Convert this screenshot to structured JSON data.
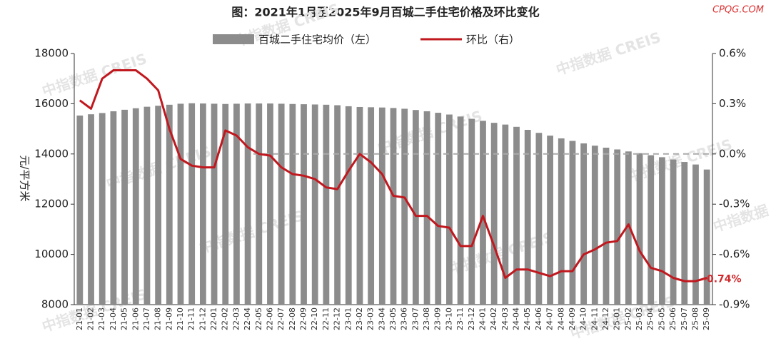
{
  "chart_data": {
    "type": "bar-line",
    "title": "图：2021年1月至2025年9月百城二手住宅价格及环比变化",
    "source_mark": "CPQG.COM",
    "watermark": "中指数据 CREIS",
    "y_label": "元/平方米",
    "categories": [
      "21-01",
      "21-02",
      "21-03",
      "21-04",
      "21-05",
      "21-06",
      "21-07",
      "21-08",
      "21-09",
      "21-10",
      "21-11",
      "21-12",
      "22-01",
      "22-02",
      "22-03",
      "22-04",
      "22-05",
      "22-06",
      "22-07",
      "22-08",
      "22-09",
      "22-10",
      "22-11",
      "22-12",
      "23-01",
      "23-02",
      "23-03",
      "23-04",
      "23-05",
      "23-06",
      "23-07",
      "23-08",
      "23-09",
      "23-10",
      "23-11",
      "23-12",
      "24-01",
      "24-02",
      "24-03",
      "24-04",
      "24-05",
      "24-06",
      "24-07",
      "24-08",
      "24-09",
      "24-10",
      "24-11",
      "24-12",
      "25-01",
      "25-02",
      "25-03",
      "25-04",
      "25-05",
      "25-06",
      "25-07",
      "25-08",
      "25-09"
    ],
    "series": [
      {
        "name": "百城二手住宅均价（左）",
        "type": "bar",
        "color": "#8c8c8c",
        "values": [
          15530,
          15580,
          15630,
          15700,
          15760,
          15820,
          15880,
          15920,
          15960,
          16000,
          16020,
          16010,
          16000,
          15990,
          16000,
          16010,
          16010,
          16010,
          16000,
          15990,
          15980,
          15970,
          15960,
          15940,
          15900,
          15870,
          15860,
          15850,
          15830,
          15800,
          15750,
          15700,
          15640,
          15570,
          15490,
          15400,
          15320,
          15240,
          15170,
          15080,
          14960,
          14840,
          14730,
          14620,
          14520,
          14420,
          14330,
          14250,
          14180,
          14100,
          14030,
          13950,
          13870,
          13780,
          13680,
          13580,
          13380
        ]
      },
      {
        "name": "环比（右）",
        "type": "line",
        "axis": "y2",
        "color": "#c0181e",
        "values": [
          0.32,
          0.27,
          0.45,
          0.5,
          0.5,
          0.5,
          0.45,
          0.38,
          0.15,
          -0.03,
          -0.07,
          -0.08,
          -0.08,
          0.14,
          0.11,
          0.04,
          0.0,
          -0.01,
          -0.08,
          -0.12,
          -0.13,
          -0.15,
          -0.2,
          -0.21,
          -0.1,
          0.0,
          -0.05,
          -0.12,
          -0.25,
          -0.26,
          -0.37,
          -0.37,
          -0.43,
          -0.44,
          -0.55,
          -0.55,
          -0.37,
          -0.55,
          -0.74,
          -0.69,
          -0.69,
          -0.71,
          -0.73,
          -0.7,
          -0.7,
          -0.6,
          -0.57,
          -0.53,
          -0.52,
          -0.42,
          -0.58,
          -0.68,
          -0.7,
          -0.74,
          -0.76,
          -0.76,
          -0.74
        ],
        "value_labels": [
          null,
          null,
          null,
          null,
          null,
          null,
          null,
          null,
          null,
          null,
          null,
          null,
          null,
          null,
          null,
          null,
          null,
          null,
          null,
          null,
          null,
          null,
          null,
          null,
          null,
          null,
          null,
          null,
          null,
          null,
          null,
          null,
          null,
          null,
          null,
          null,
          null,
          null,
          null,
          null,
          null,
          null,
          null,
          null,
          null,
          null,
          null,
          null,
          null,
          null,
          null,
          null,
          null,
          null,
          null,
          null,
          "-0.74%"
        ]
      }
    ],
    "ylim": [
      8000,
      18000
    ],
    "yticks": [
      8000,
      10000,
      12000,
      14000,
      16000,
      18000
    ],
    "y2lim": [
      -0.9,
      0.6
    ],
    "y2ticks": [
      {
        "value": -0.9,
        "label": "-0.9%"
      },
      {
        "value": -0.6,
        "label": "-0.6%"
      },
      {
        "value": -0.3,
        "label": "-0.3%"
      },
      {
        "value": 0.0,
        "label": "0.0%"
      },
      {
        "value": 0.3,
        "label": "0.3%"
      },
      {
        "value": 0.6,
        "label": "0.6%"
      }
    ],
    "reference_line": {
      "axis": "y2",
      "value": 0.0
    },
    "legend": "top"
  }
}
